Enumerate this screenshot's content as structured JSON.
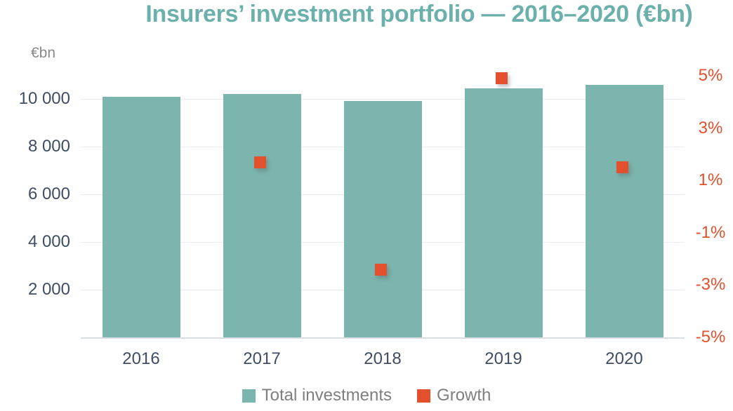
{
  "chart_data": {
    "type": "bar",
    "title": "Insurers’ investment portfolio — 2016–2020 (€bn)",
    "title_color": "#6CB0AB",
    "categories": [
      "2016",
      "2017",
      "2018",
      "2019",
      "2020"
    ],
    "series": [
      {
        "name": "Total investments",
        "kind": "bar",
        "axis": "left",
        "color": "#7CB4AE",
        "values": [
          10100,
          10200,
          9900,
          10450,
          10600
        ]
      },
      {
        "name": "Growth",
        "kind": "scatter-square",
        "axis": "right",
        "color": "#E2502D",
        "values": [
          null,
          1.7,
          -2.4,
          4.9,
          1.5
        ]
      }
    ],
    "left_axis": {
      "label": "€bn",
      "ticks": [
        "10 000",
        "8 000",
        "6 000",
        "4 000",
        "2 000"
      ],
      "tick_values": [
        10000,
        8000,
        6000,
        4000,
        2000
      ],
      "min": 0,
      "max": 11500,
      "text_color": "#3F4E64"
    },
    "right_axis": {
      "ticks": [
        "5%",
        "3%",
        "1%",
        "-1%",
        "-3%",
        "-5%"
      ],
      "tick_values": [
        5,
        3,
        1,
        -1,
        -3,
        -5
      ],
      "min": -5,
      "max": 5,
      "text_color": "#E2502D"
    },
    "grid": true,
    "legend_position": "bottom",
    "legend": [
      {
        "label": "Total investments",
        "color": "#7CB4AE"
      },
      {
        "label": "Growth",
        "color": "#E2502D"
      }
    ]
  }
}
